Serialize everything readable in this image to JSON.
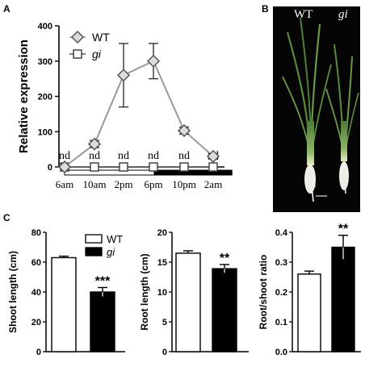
{
  "panels": {
    "a": "A",
    "b": "B",
    "c": "C"
  },
  "photo": {
    "label_wt": "WT",
    "label_gi": "gi"
  },
  "chart_data": [
    {
      "type": "line",
      "panel": "A",
      "ylabel": "Relative expression",
      "xlabel": "",
      "categories": [
        "6am",
        "10am",
        "2pm",
        "6pm",
        "10pm",
        "2am"
      ],
      "ylim": [
        0,
        400
      ],
      "yticks": [
        0,
        100,
        200,
        300,
        400
      ],
      "series": [
        {
          "name": "WT",
          "values": [
            0,
            65,
            260,
            300,
            103,
            30
          ],
          "errors": [
            0,
            10,
            90,
            50,
            10,
            8
          ],
          "color": "#999999",
          "marker": "diamond"
        },
        {
          "name": "gi",
          "values": [
            0,
            0,
            0,
            0,
            0,
            0
          ],
          "labels": [
            "nd",
            "nd",
            "nd",
            "nd",
            "nd",
            "nd"
          ],
          "color": "#555555",
          "marker": "square"
        }
      ],
      "light_bar": {
        "light": [
          0,
          3
        ],
        "dark": [
          3,
          5.6
        ]
      }
    },
    {
      "type": "bar",
      "panel": "C1",
      "ylabel": "Shoot length (cm)",
      "categories": [
        "WT",
        "gi"
      ],
      "values": [
        63,
        40
      ],
      "errors": [
        1,
        3
      ],
      "significance": [
        "",
        "***"
      ],
      "ylim": [
        0,
        80
      ],
      "yticks": [
        0,
        20,
        40,
        60,
        80
      ],
      "legend": [
        "WT",
        "gi"
      ]
    },
    {
      "type": "bar",
      "panel": "C2",
      "ylabel": "Root length (cm)",
      "categories": [
        "WT",
        "gi"
      ],
      "values": [
        16.5,
        13.9
      ],
      "errors": [
        0.4,
        0.7
      ],
      "significance": [
        "",
        "**"
      ],
      "ylim": [
        0,
        20
      ],
      "yticks": [
        0,
        5,
        10,
        15,
        20
      ]
    },
    {
      "type": "bar",
      "panel": "C3",
      "ylabel": "Root/shoot ratio",
      "categories": [
        "WT",
        "gi"
      ],
      "values": [
        0.26,
        0.35
      ],
      "errors": [
        0.01,
        0.04
      ],
      "significance": [
        "",
        "**"
      ],
      "ylim": [
        0,
        0.4
      ],
      "yticks": [
        "0.0",
        "0.1",
        "0.2",
        "0.3",
        "0.4"
      ]
    }
  ]
}
